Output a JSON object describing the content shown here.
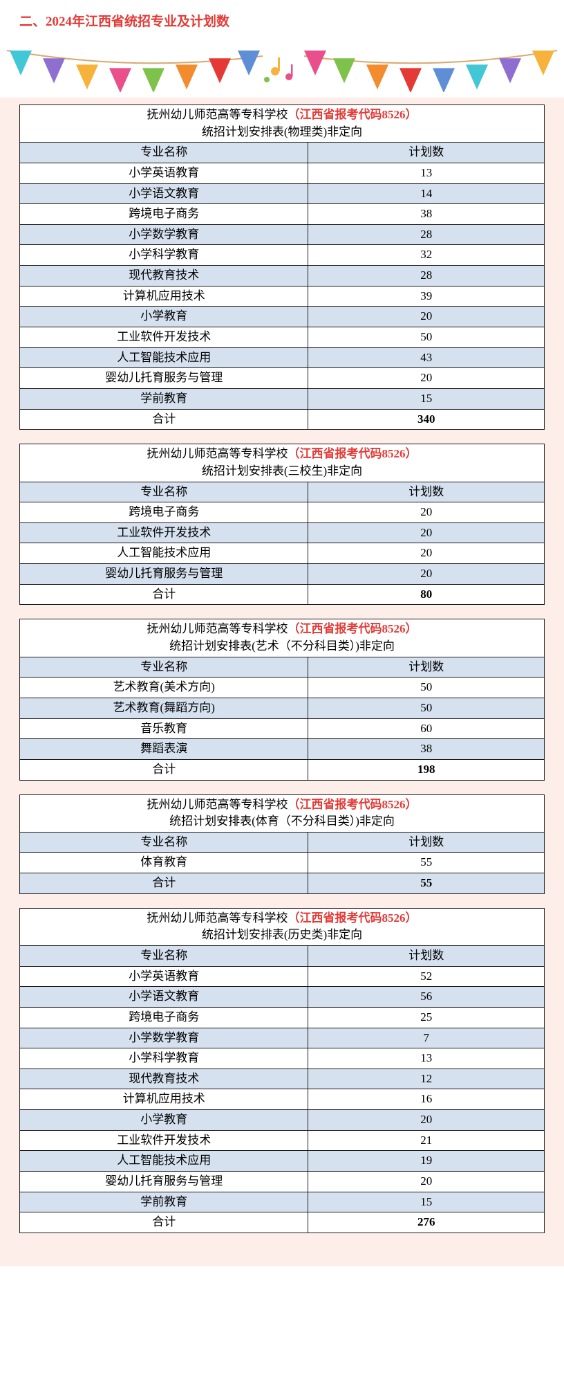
{
  "heading": "二、2024年江西省统招专业及计划数",
  "colors": {
    "heading": "#e53935",
    "code": "#e53935",
    "zebra": "#d6e1ef",
    "border": "#1a1a1a",
    "content_bg": "#fdeee9",
    "pennants": [
      "#42c7d6",
      "#8e6fd1",
      "#f7b23b",
      "#e94f8a",
      "#7fc24b",
      "#f28c2e",
      "#e53935",
      "#5e8fd6"
    ]
  },
  "school": "抚州幼儿师范高等专科学校",
  "code_prefix": "（江西省报考代码",
  "code_value": "8526",
  "code_suffix": "）",
  "subtitle_prefix": "统招计划安排表",
  "subtitle_suffix": "非定向",
  "col_name": "专业名称",
  "col_count": "计划数",
  "total_label": "合计",
  "tables": [
    {
      "category": "(物理类)",
      "rows": [
        {
          "name": "小学英语教育",
          "count": 13
        },
        {
          "name": "小学语文教育",
          "count": 14
        },
        {
          "name": "跨境电子商务",
          "count": 38
        },
        {
          "name": "小学数学教育",
          "count": 28
        },
        {
          "name": "小学科学教育",
          "count": 32
        },
        {
          "name": "现代教育技术",
          "count": 28
        },
        {
          "name": "计算机应用技术",
          "count": 39
        },
        {
          "name": "小学教育",
          "count": 20
        },
        {
          "name": "工业软件开发技术",
          "count": 50
        },
        {
          "name": "人工智能技术应用",
          "count": 43
        },
        {
          "name": "婴幼儿托育服务与管理",
          "count": 20
        },
        {
          "name": "学前教育",
          "count": 15
        }
      ],
      "total": 340
    },
    {
      "category": "(三校生)",
      "rows": [
        {
          "name": "跨境电子商务",
          "count": 20
        },
        {
          "name": "工业软件开发技术",
          "count": 20
        },
        {
          "name": "人工智能技术应用",
          "count": 20
        },
        {
          "name": "婴幼儿托育服务与管理",
          "count": 20
        }
      ],
      "total": 80
    },
    {
      "category": "(艺术（不分科目类）)",
      "rows": [
        {
          "name": "艺术教育(美术方向)",
          "count": 50
        },
        {
          "name": "艺术教育(舞蹈方向)",
          "count": 50
        },
        {
          "name": "音乐教育",
          "count": 60
        },
        {
          "name": "舞蹈表演",
          "count": 38
        }
      ],
      "total": 198
    },
    {
      "category": "(体育（不分科目类）)",
      "rows": [
        {
          "name": "体育教育",
          "count": 55
        }
      ],
      "total": 55
    },
    {
      "category": "(历史类)",
      "rows": [
        {
          "name": "小学英语教育",
          "count": 52
        },
        {
          "name": "小学语文教育",
          "count": 56
        },
        {
          "name": "跨境电子商务",
          "count": 25
        },
        {
          "name": "小学数学教育",
          "count": 7
        },
        {
          "name": "小学科学教育",
          "count": 13
        },
        {
          "name": "现代教育技术",
          "count": 12
        },
        {
          "name": "计算机应用技术",
          "count": 16
        },
        {
          "name": "小学教育",
          "count": 20
        },
        {
          "name": "工业软件开发技术",
          "count": 21
        },
        {
          "name": "人工智能技术应用",
          "count": 19
        },
        {
          "name": "婴幼儿托育服务与管理",
          "count": 20
        },
        {
          "name": "学前教育",
          "count": 15
        }
      ],
      "total": 276
    }
  ]
}
